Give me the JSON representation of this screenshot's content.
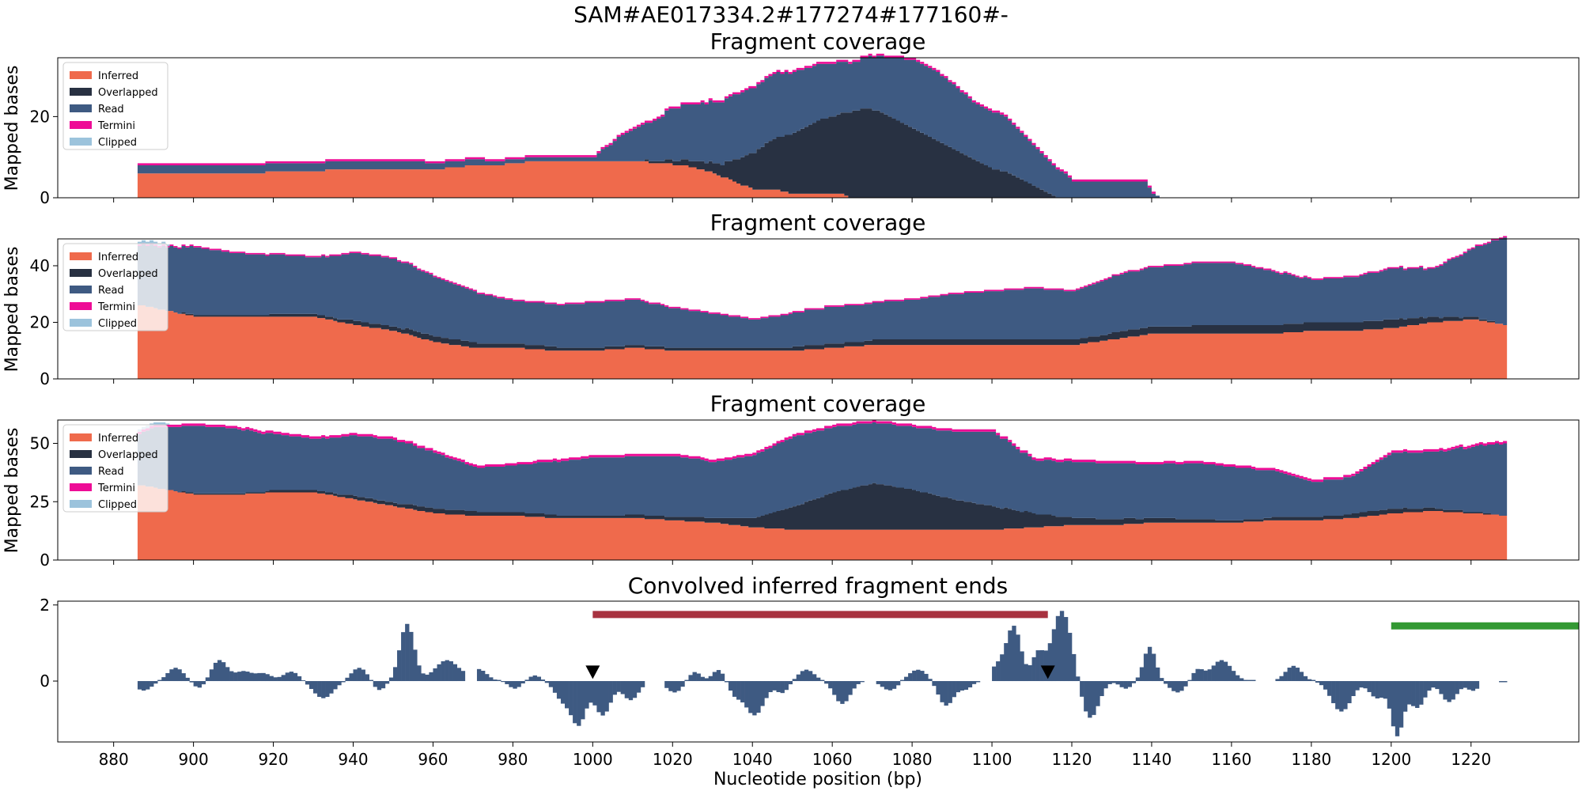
{
  "figure": {
    "suptitle": "SAM#AE017334.2#177274#177160#-"
  },
  "colors": {
    "Inferred": "#ef6a4c",
    "Overlapped": "#283142",
    "Read": "#3e5a82",
    "Termini": "#ee0c96",
    "Clipped": "#9cc3dc",
    "conv_bar": "#3e5a82",
    "red_segment": "#a83240",
    "green_segment": "#339933",
    "marker": "#000000"
  },
  "chart_data": [
    {
      "type": "area",
      "title": "Fragment coverage",
      "ylabel": "Mapped bases",
      "xlim": [
        866,
        1247
      ],
      "ylim": [
        0,
        34.5
      ],
      "yticks": [
        0,
        20
      ],
      "legend": {
        "placement": "upper-left",
        "entries": [
          "Inferred",
          "Overlapped",
          "Read",
          "Termini",
          "Clipped"
        ]
      },
      "series": [
        {
          "name": "Inferred",
          "x": [
            886,
            890,
            910,
            940,
            950,
            960,
            970,
            975,
            985,
            1000,
            1010,
            1022,
            1030,
            1035,
            1040,
            1045,
            1050,
            1055,
            1058,
            1062,
            1064,
            1067,
            1070
          ],
          "y": [
            6,
            6,
            6,
            7,
            7,
            7,
            8,
            8,
            9,
            9,
            9,
            8,
            6,
            4,
            2,
            2,
            1,
            1,
            1,
            1,
            0,
            0,
            0
          ]
        },
        {
          "name": "Overlapped",
          "x": [
            886,
            1010,
            1020,
            1028,
            1032,
            1036,
            1040,
            1044,
            1048,
            1052,
            1056,
            1060,
            1064,
            1068,
            1072,
            1076,
            1080,
            1084,
            1088,
            1092,
            1096,
            1100,
            1104,
            1108,
            1112,
            1114,
            1116,
            1118,
            1120
          ],
          "y": [
            0,
            0,
            1,
            2,
            3,
            6,
            9,
            12,
            14,
            16,
            18,
            19,
            21,
            22,
            21,
            19,
            17,
            15,
            13,
            11,
            9,
            7,
            6,
            4,
            2,
            1,
            0,
            0,
            0
          ]
        },
        {
          "name": "Read",
          "x": [
            886,
            890,
            945,
            950,
            980,
            985,
            995,
            1000,
            1002,
            1004,
            1006,
            1008,
            1010,
            1015,
            1020,
            1025,
            1030,
            1035,
            1040,
            1045,
            1050,
            1055,
            1060,
            1065,
            1070,
            1075,
            1080,
            1085,
            1090,
            1095,
            1100,
            1102,
            1104,
            1106,
            1108,
            1110,
            1112,
            1114,
            1116,
            1118,
            1120,
            1125,
            1135,
            1138,
            1140,
            1142
          ],
          "y": [
            2,
            2,
            2,
            2,
            1,
            1,
            1,
            1,
            3,
            4,
            6,
            7,
            8,
            10,
            13,
            14,
            15,
            16,
            16,
            16,
            15,
            14,
            13,
            12,
            13,
            15,
            17,
            17,
            16,
            14,
            14,
            14,
            13,
            12,
            11,
            10,
            9,
            8,
            7,
            6,
            4,
            4,
            4,
            4,
            1,
            0
          ]
        },
        {
          "name": "Termini",
          "x": [
            886,
            1000,
            1005,
            1010,
            1020,
            1030,
            1040,
            1050,
            1060,
            1070,
            1080,
            1090,
            1100,
            1110,
            1115,
            1120,
            1130,
            1140
          ],
          "y": [
            0.5,
            0.5,
            0.6,
            0.6,
            0.6,
            0.6,
            0.6,
            0.6,
            0.6,
            0.6,
            0.6,
            0.6,
            0.7,
            0.7,
            0.7,
            0.6,
            0.5,
            0.5
          ]
        },
        {
          "name": "Clipped",
          "x": [
            886,
            1140
          ],
          "y": [
            0,
            0
          ]
        }
      ]
    },
    {
      "type": "area",
      "title": "Fragment coverage",
      "ylabel": "Mapped bases",
      "xlim": [
        866,
        1247
      ],
      "ylim": [
        0,
        49.5
      ],
      "yticks": [
        0,
        20,
        40
      ],
      "legend": {
        "placement": "upper-left",
        "entries": [
          "Inferred",
          "Overlapped",
          "Read",
          "Termini",
          "Clipped"
        ]
      },
      "series": [
        {
          "name": "Inferred",
          "x": [
            886,
            890,
            900,
            910,
            920,
            930,
            940,
            950,
            960,
            970,
            980,
            990,
            1000,
            1010,
            1020,
            1030,
            1040,
            1050,
            1060,
            1070,
            1080,
            1090,
            1100,
            1110,
            1120,
            1130,
            1140,
            1150,
            1160,
            1170,
            1180,
            1190,
            1200,
            1210,
            1220,
            1228
          ],
          "y": [
            26,
            25,
            22,
            22,
            22,
            22,
            19,
            17,
            13,
            11,
            11,
            10,
            10,
            11,
            10,
            10,
            10,
            10,
            11,
            12,
            12,
            12,
            12,
            12,
            12,
            14,
            16,
            16,
            16,
            16,
            17,
            17,
            18,
            20,
            21,
            19
          ]
        },
        {
          "name": "Overlapped",
          "x": [
            886,
            930,
            960,
            1000,
            1040,
            1080,
            1120,
            1160,
            1200,
            1228
          ],
          "y": [
            0,
            1,
            2,
            1,
            1,
            2,
            2,
            3,
            3,
            0
          ]
        },
        {
          "name": "Read",
          "x": [
            886,
            890,
            900,
            910,
            920,
            930,
            940,
            950,
            960,
            970,
            980,
            990,
            1000,
            1010,
            1020,
            1030,
            1040,
            1050,
            1060,
            1070,
            1080,
            1090,
            1100,
            1110,
            1120,
            1130,
            1140,
            1150,
            1160,
            1170,
            1180,
            1190,
            1200,
            1210,
            1220,
            1228
          ],
          "y": [
            21,
            22,
            24,
            22,
            21,
            20,
            24,
            24,
            21,
            18,
            15,
            15,
            16,
            16,
            14,
            12,
            10,
            12,
            13,
            13,
            14,
            16,
            17,
            18,
            17,
            20,
            21,
            22,
            22,
            19,
            15,
            16,
            18,
            17,
            24,
            31
          ]
        },
        {
          "name": "Termini",
          "x": [
            886,
            1228
          ],
          "y": [
            0.6,
            0.6
          ]
        },
        {
          "name": "Clipped",
          "x": [
            886,
            892,
            894
          ],
          "y": [
            1,
            1,
            0
          ]
        }
      ]
    },
    {
      "type": "area",
      "title": "Fragment coverage",
      "ylabel": "Mapped bases",
      "xlim": [
        866,
        1247
      ],
      "ylim": [
        0,
        60
      ],
      "yticks": [
        0,
        25,
        50
      ],
      "legend": {
        "placement": "upper-left",
        "entries": [
          "Inferred",
          "Overlapped",
          "Read",
          "Termini",
          "Clipped"
        ]
      },
      "series": [
        {
          "name": "Inferred",
          "x": [
            886,
            890,
            900,
            910,
            920,
            930,
            940,
            950,
            960,
            970,
            980,
            990,
            1000,
            1010,
            1020,
            1030,
            1040,
            1050,
            1060,
            1070,
            1080,
            1090,
            1100,
            1110,
            1120,
            1130,
            1140,
            1150,
            1160,
            1170,
            1180,
            1190,
            1200,
            1210,
            1220,
            1228
          ],
          "y": [
            32,
            31,
            28,
            28,
            29,
            29,
            26,
            23,
            20,
            19,
            19,
            18,
            18,
            18,
            17,
            16,
            14,
            13,
            13,
            13,
            13,
            13,
            13,
            14,
            15,
            15,
            16,
            16,
            16,
            17,
            17,
            18,
            20,
            21,
            20,
            19
          ]
        },
        {
          "name": "Overlapped",
          "x": [
            886,
            930,
            960,
            1000,
            1030,
            1040,
            1050,
            1060,
            1070,
            1080,
            1090,
            1100,
            1110,
            1120,
            1140,
            1160,
            1200,
            1228
          ],
          "y": [
            0,
            1,
            2,
            1,
            2,
            4,
            10,
            16,
            20,
            17,
            13,
            10,
            6,
            3,
            2,
            1,
            2,
            0
          ]
        },
        {
          "name": "Read",
          "x": [
            886,
            890,
            900,
            910,
            920,
            930,
            940,
            950,
            960,
            970,
            980,
            990,
            1000,
            1010,
            1020,
            1030,
            1040,
            1050,
            1060,
            1070,
            1080,
            1090,
            1100,
            1110,
            1120,
            1130,
            1140,
            1150,
            1160,
            1170,
            1180,
            1190,
            1200,
            1210,
            1220,
            1228
          ],
          "y": [
            22,
            26,
            29,
            28,
            24,
            22,
            26,
            27,
            24,
            19,
            20,
            23,
            25,
            25,
            26,
            24,
            27,
            30,
            28,
            26,
            27,
            29,
            32,
            23,
            24,
            24,
            23,
            24,
            23,
            20,
            15,
            16,
            24,
            24,
            28,
            31
          ]
        },
        {
          "name": "Termini",
          "x": [
            886,
            1228
          ],
          "y": [
            0.8,
            0.8
          ]
        },
        {
          "name": "Clipped",
          "x": [
            886,
            892,
            894
          ],
          "y": [
            1,
            1,
            0
          ]
        }
      ]
    },
    {
      "type": "bar",
      "title": "Convolved inferred fragment ends",
      "xlabel": "Nucleotide position (bp)",
      "xlim": [
        866,
        1247
      ],
      "ylim": [
        -1.6,
        2.1
      ],
      "yticks": [
        0,
        2
      ],
      "xticks": [
        880,
        900,
        920,
        940,
        960,
        980,
        1000,
        1020,
        1040,
        1060,
        1080,
        1100,
        1120,
        1140,
        1160,
        1180,
        1200,
        1220
      ],
      "bumps": [
        {
          "c": 887,
          "a": -0.25,
          "w": 2
        },
        {
          "c": 895,
          "a": 0.35,
          "w": 2
        },
        {
          "c": 901,
          "a": -0.2,
          "w": 1.5
        },
        {
          "c": 906,
          "a": 0.55,
          "w": 2
        },
        {
          "c": 912,
          "a": 0.25,
          "w": 2
        },
        {
          "c": 917,
          "a": 0.2,
          "w": 2
        },
        {
          "c": 924,
          "a": 0.25,
          "w": 2
        },
        {
          "c": 932,
          "a": -0.45,
          "w": 2.5
        },
        {
          "c": 941,
          "a": 0.35,
          "w": 2
        },
        {
          "c": 946,
          "a": -0.25,
          "w": 1.5
        },
        {
          "c": 953,
          "a": 1.5,
          "w": 1.8
        },
        {
          "c": 963,
          "a": 0.55,
          "w": 3
        },
        {
          "c": 971,
          "a": 0.3,
          "w": 2
        },
        {
          "c": 980,
          "a": -0.2,
          "w": 1.5
        },
        {
          "c": 985,
          "a": 0.15,
          "w": 1.5
        },
        {
          "c": 992,
          "a": -0.5,
          "w": 2
        },
        {
          "c": 996,
          "a": -1.1,
          "w": 1.8
        },
        {
          "c": 1002,
          "a": -0.9,
          "w": 2
        },
        {
          "c": 1009,
          "a": -0.5,
          "w": 2
        },
        {
          "c": 1020,
          "a": -0.3,
          "w": 2
        },
        {
          "c": 1025,
          "a": 0.25,
          "w": 1.5
        },
        {
          "c": 1031,
          "a": 0.3,
          "w": 1.5
        },
        {
          "c": 1035,
          "a": -0.3,
          "w": 1.5
        },
        {
          "c": 1040,
          "a": -0.9,
          "w": 2.5
        },
        {
          "c": 1047,
          "a": -0.3,
          "w": 1.5
        },
        {
          "c": 1053,
          "a": 0.3,
          "w": 2
        },
        {
          "c": 1062,
          "a": -0.6,
          "w": 2
        },
        {
          "c": 1074,
          "a": -0.25,
          "w": 2
        },
        {
          "c": 1081,
          "a": 0.3,
          "w": 2.5
        },
        {
          "c": 1088,
          "a": -0.65,
          "w": 2
        },
        {
          "c": 1093,
          "a": -0.2,
          "w": 1.5
        },
        {
          "c": 1101,
          "a": 0.4,
          "w": 2
        },
        {
          "c": 1105,
          "a": 1.4,
          "w": 1.8
        },
        {
          "c": 1111,
          "a": 0.7,
          "w": 1.5
        },
        {
          "c": 1117,
          "a": 1.85,
          "w": 2.5
        },
        {
          "c": 1124,
          "a": -1.0,
          "w": 2.2
        },
        {
          "c": 1133,
          "a": -0.2,
          "w": 1.5
        },
        {
          "c": 1139,
          "a": 0.9,
          "w": 1.5
        },
        {
          "c": 1146,
          "a": -0.3,
          "w": 2
        },
        {
          "c": 1151,
          "a": 0.3,
          "w": 1.5
        },
        {
          "c": 1157,
          "a": 0.55,
          "w": 2.5
        },
        {
          "c": 1175,
          "a": 0.4,
          "w": 2
        },
        {
          "c": 1187,
          "a": -0.8,
          "w": 2.5
        },
        {
          "c": 1196,
          "a": -0.45,
          "w": 2
        },
        {
          "c": 1201,
          "a": -1.4,
          "w": 1.5
        },
        {
          "c": 1206,
          "a": -0.7,
          "w": 2
        },
        {
          "c": 1214,
          "a": -0.55,
          "w": 2
        },
        {
          "c": 1220,
          "a": -0.25,
          "w": 1.5
        }
      ],
      "x_start": 886,
      "x_end": 1228,
      "gaps": [
        [
          968,
          970
        ],
        [
          1013,
          1017
        ],
        [
          1068,
          1070
        ],
        [
          1097,
          1099
        ],
        [
          1166,
          1170
        ],
        [
          1222,
          1226
        ]
      ],
      "segments": [
        {
          "color": "red_segment",
          "x0": 1000,
          "x1": 1114,
          "y": 1.75
        },
        {
          "color": "green_segment",
          "x0": 1200,
          "x1": 1247,
          "y": 1.45
        }
      ],
      "markers": [
        {
          "x": 1000,
          "y": 0.2
        },
        {
          "x": 1114,
          "y": 0.2
        }
      ]
    }
  ]
}
